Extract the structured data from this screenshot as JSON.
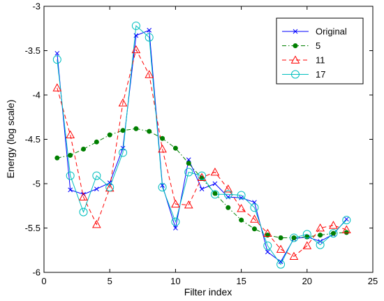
{
  "chart_data": {
    "type": "line",
    "title": "",
    "xlabel": "Filter index",
    "ylabel": "Energy  (log scale)",
    "xlim": [
      0,
      25
    ],
    "ylim": [
      -6,
      -3
    ],
    "xticks": [
      0,
      5,
      10,
      15,
      20,
      25
    ],
    "yticks": [
      -3,
      -3.5,
      -4,
      -4.5,
      -5,
      -5.5,
      -6
    ],
    "xtick_labels": [
      "0",
      "5",
      "10",
      "15",
      "20",
      "25"
    ],
    "ytick_labels": [
      "-3",
      "-3.5",
      "-4",
      "-4.5",
      "-5",
      "-5.5",
      "-6"
    ],
    "grid": false,
    "legend_position": "top-right",
    "x": [
      1,
      2,
      3,
      4,
      5,
      6,
      7,
      8,
      9,
      10,
      11,
      12,
      13,
      14,
      15,
      16,
      17,
      18,
      19,
      20,
      21,
      22,
      23
    ],
    "series": [
      {
        "name": "Original",
        "color": "#0000ff",
        "line_style": "solid",
        "marker": "x",
        "values": [
          -3.53,
          -5.07,
          -5.12,
          -5.06,
          -4.99,
          -4.6,
          -3.33,
          -3.27,
          -5.02,
          -5.5,
          -4.73,
          -5.06,
          -5.0,
          -5.15,
          -5.16,
          -5.21,
          -5.77,
          -5.88,
          -5.62,
          -5.6,
          -5.65,
          -5.57,
          -5.4
        ]
      },
      {
        "name": "5",
        "color": "#007f00",
        "line_style": "dash-dot",
        "marker": "filled-circle",
        "values": [
          -4.71,
          -4.68,
          -4.61,
          -4.53,
          -4.45,
          -4.4,
          -4.38,
          -4.41,
          -4.49,
          -4.6,
          -4.77,
          -4.94,
          -5.11,
          -5.27,
          -5.41,
          -5.51,
          -5.58,
          -5.61,
          -5.61,
          -5.6,
          -5.58,
          -5.56,
          -5.55
        ]
      },
      {
        "name": "11",
        "color": "#ff0000",
        "line_style": "dashed",
        "marker": "triangle",
        "values": [
          -3.92,
          -4.45,
          -5.15,
          -5.46,
          -5.05,
          -4.09,
          -3.49,
          -3.77,
          -4.61,
          -5.23,
          -5.24,
          -4.93,
          -4.87,
          -5.06,
          -5.28,
          -5.4,
          -5.56,
          -5.74,
          -5.82,
          -5.7,
          -5.5,
          -5.47,
          -5.52
        ]
      },
      {
        "name": "17",
        "color": "#00bfbf",
        "line_style": "solid",
        "marker": "circle",
        "values": [
          -3.6,
          -4.91,
          -5.32,
          -4.91,
          -5.04,
          -4.65,
          -3.22,
          -3.35,
          -5.04,
          -5.43,
          -4.87,
          -4.91,
          -5.12,
          -5.12,
          -5.13,
          -5.27,
          -5.7,
          -5.91,
          -5.61,
          -5.57,
          -5.69,
          -5.56,
          -5.41
        ]
      }
    ]
  }
}
